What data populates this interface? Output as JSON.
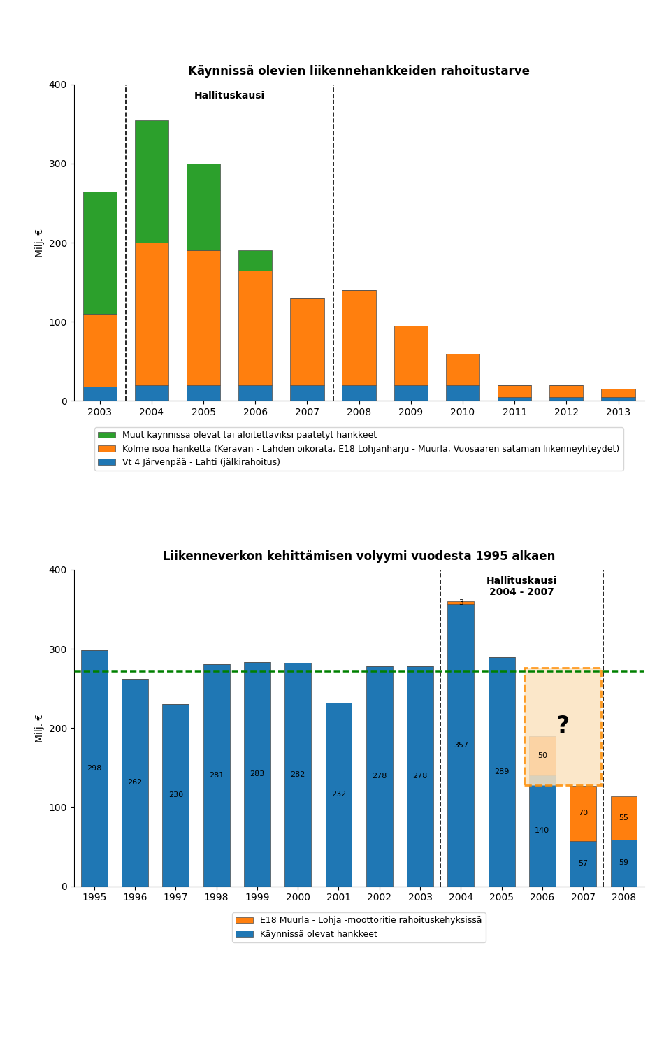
{
  "chart_data": [
    {
      "type": "bar",
      "title": "Käynnissä olevien liikennehankkeiden rahoitustarve",
      "categories": [
        "2003",
        "2004",
        "2005",
        "2006",
        "2007",
        "2008",
        "2009",
        "2010",
        "2011",
        "2012",
        "2013"
      ],
      "series": [
        {
          "name": "Vt 4 Järvenpää - Lahti (jälkirahoitus)",
          "values": [
            18,
            20,
            20,
            20,
            20,
            20,
            20,
            20,
            5,
            5,
            5
          ]
        },
        {
          "name": "Kolme isoa hanketta (Keravan - Lahden oikorata, E18 Lohjanharju - Muurla, Vuosaaren sataman liikenneyhteydet)",
          "values": [
            92,
            180,
            170,
            145,
            110,
            120,
            75,
            40,
            15,
            15,
            10
          ]
        },
        {
          "name": "Muut käynnissä olevat tai aloitettaviksi päätetyt hankkeet",
          "values": [
            155,
            155,
            110,
            25,
            0,
            0,
            0,
            0,
            0,
            0,
            0
          ]
        }
      ],
      "stacked": true,
      "y_label": "Milj. €",
      "ylim": [
        0,
        400
      ],
      "yticks": [
        0,
        100,
        200,
        300,
        400
      ],
      "grid": false,
      "legend": "upper center",
      "annotations": [
        {
          "text": "Hallituskausi",
          "from": "2004",
          "to": "2007"
        }
      ]
    },
    {
      "type": "bar",
      "title": "Liikenneverkon kehittämisen volyymi vuodesta 1995 alkaen",
      "categories": [
        "1995",
        "1996",
        "1997",
        "1998",
        "1999",
        "2000",
        "2001",
        "2002",
        "2003",
        "2004",
        "2005",
        "2006",
        "2007",
        "2008"
      ],
      "series": [
        {
          "name": "Käynnissä olevat hankkeet",
          "values": [
            298,
            262,
            230,
            281,
            283,
            282,
            232,
            278,
            278,
            357,
            289,
            140,
            57,
            59
          ],
          "data_labels": true
        },
        {
          "name": "E18 Muurla - Lohja -moottoritie rahoituskehyksissä",
          "values": [
            0,
            0,
            0,
            0,
            0,
            0,
            0,
            0,
            0,
            3,
            0,
            50,
            70,
            55
          ],
          "data_labels": true,
          "value_labels": [
            null,
            null,
            null,
            null,
            null,
            null,
            null,
            null,
            null,
            "3",
            null,
            "50",
            "70",
            "55"
          ]
        }
      ],
      "stacked": true,
      "y_label": "Milj. €",
      "ylim": [
        0,
        400
      ],
      "yticks": [
        0,
        100,
        200,
        300,
        400
      ],
      "grid": false,
      "legend": "upper center",
      "hline": {
        "y": 272,
        "color": "green"
      },
      "annotations": [
        {
          "text": "Hallituskausi\n2004 - 2007",
          "from": "2004",
          "to": "2007"
        },
        {
          "text": "?",
          "from": "2006",
          "to": "2007",
          "y": [
            128,
            276
          ]
        }
      ]
    }
  ]
}
